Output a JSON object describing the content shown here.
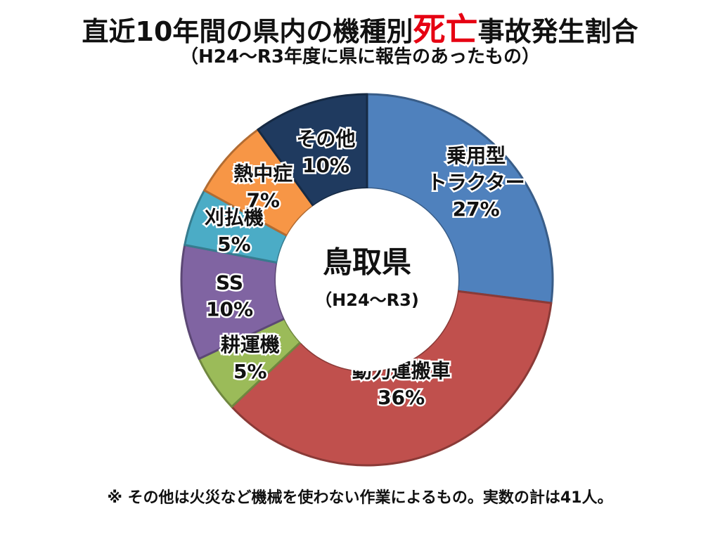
{
  "title": {
    "before": "直近10年間の県内の機種別",
    "accent": "死亡",
    "after": "事故発生割合",
    "accent_color": "#e60012"
  },
  "subtitle": "（H24～R3年度に県に報告のあったもの）",
  "chart_data": {
    "type": "pie",
    "donut": true,
    "center_label": "鳥取県",
    "center_sublabel": "（H24～R3)",
    "slices": [
      {
        "name": "乗用型\nトラクター",
        "value": 27,
        "label": "27%",
        "color": "#4f81bd"
      },
      {
        "name": "動力運搬車",
        "value": 36,
        "label": "36%",
        "color": "#c0504d"
      },
      {
        "name": "耕運機",
        "value": 5,
        "label": "5%",
        "color": "#9bbb59"
      },
      {
        "name": "SS",
        "value": 10,
        "label": "10%",
        "color": "#8064a2"
      },
      {
        "name": "刈払機",
        "value": 5,
        "label": "5%",
        "color": "#4bacc6"
      },
      {
        "name": "熱中症",
        "value": 7,
        "label": "7%",
        "color": "#f79646"
      },
      {
        "name": "その他",
        "value": 10,
        "label": "10%",
        "color": "#1f3a5f"
      }
    ]
  },
  "footnote": "※  その他は火災など機械を使わない作業によるもの。実数の計は41人。"
}
